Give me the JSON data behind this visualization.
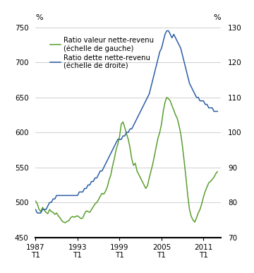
{
  "ylabel_left": "%",
  "ylabel_right": "%",
  "ylim_left": [
    450,
    750
  ],
  "ylim_right": [
    70,
    130
  ],
  "yticks_left": [
    450,
    500,
    550,
    600,
    650,
    700,
    750
  ],
  "yticks_right": [
    70,
    80,
    90,
    100,
    110,
    120,
    130
  ],
  "xtick_years": [
    1987,
    1993,
    1999,
    2005,
    2011
  ],
  "xlim": [
    1987.0,
    2013.5
  ],
  "line1_color": "#5a9e2f",
  "line2_color": "#2b5da6",
  "line1_label": "Ratio valeur nette-revenu\n(échelle de gauche)",
  "line2_label": "Ratio dette nette-revenu\n(échelle de droite)",
  "legend_fontsize": 7.2,
  "tick_fontsize": 7.5,
  "pct_fontsize": 8.0,
  "background_color": "#ffffff",
  "grid_color": "#c8c8c8",
  "line_width": 1.1,
  "green_data": [
    [
      1987.0,
      502
    ],
    [
      1987.25,
      498
    ],
    [
      1987.5,
      490
    ],
    [
      1987.75,
      487
    ],
    [
      1988.0,
      493
    ],
    [
      1988.25,
      489
    ],
    [
      1988.5,
      486
    ],
    [
      1988.75,
      484
    ],
    [
      1989.0,
      490
    ],
    [
      1989.25,
      487
    ],
    [
      1989.5,
      486
    ],
    [
      1989.75,
      483
    ],
    [
      1990.0,
      485
    ],
    [
      1990.25,
      481
    ],
    [
      1990.5,
      478
    ],
    [
      1990.75,
      474
    ],
    [
      1991.0,
      472
    ],
    [
      1991.25,
      471
    ],
    [
      1991.5,
      473
    ],
    [
      1991.75,
      474
    ],
    [
      1992.0,
      478
    ],
    [
      1992.25,
      480
    ],
    [
      1992.5,
      479
    ],
    [
      1992.75,
      480
    ],
    [
      1993.0,
      481
    ],
    [
      1993.25,
      479
    ],
    [
      1993.5,
      477
    ],
    [
      1993.75,
      478
    ],
    [
      1994.0,
      484
    ],
    [
      1994.25,
      488
    ],
    [
      1994.5,
      487
    ],
    [
      1994.75,
      486
    ],
    [
      1995.0,
      490
    ],
    [
      1995.25,
      494
    ],
    [
      1995.5,
      498
    ],
    [
      1995.75,
      500
    ],
    [
      1996.0,
      504
    ],
    [
      1996.25,
      509
    ],
    [
      1996.5,
      513
    ],
    [
      1996.75,
      512
    ],
    [
      1997.0,
      516
    ],
    [
      1997.25,
      522
    ],
    [
      1997.5,
      532
    ],
    [
      1997.75,
      539
    ],
    [
      1998.0,
      552
    ],
    [
      1998.25,
      562
    ],
    [
      1998.5,
      575
    ],
    [
      1998.75,
      583
    ],
    [
      1999.0,
      594
    ],
    [
      1999.25,
      612
    ],
    [
      1999.5,
      615
    ],
    [
      1999.75,
      607
    ],
    [
      2000.0,
      598
    ],
    [
      2000.25,
      590
    ],
    [
      2000.5,
      578
    ],
    [
      2000.75,
      562
    ],
    [
      2001.0,
      553
    ],
    [
      2001.25,
      556
    ],
    [
      2001.5,
      545
    ],
    [
      2001.75,
      540
    ],
    [
      2002.0,
      535
    ],
    [
      2002.25,
      530
    ],
    [
      2002.5,
      525
    ],
    [
      2002.75,
      520
    ],
    [
      2003.0,
      524
    ],
    [
      2003.25,
      535
    ],
    [
      2003.5,
      545
    ],
    [
      2003.75,
      555
    ],
    [
      2004.0,
      567
    ],
    [
      2004.25,
      580
    ],
    [
      2004.5,
      592
    ],
    [
      2004.75,
      600
    ],
    [
      2005.0,
      612
    ],
    [
      2005.25,
      630
    ],
    [
      2005.5,
      643
    ],
    [
      2005.75,
      650
    ],
    [
      2006.0,
      648
    ],
    [
      2006.25,
      645
    ],
    [
      2006.5,
      638
    ],
    [
      2006.75,
      632
    ],
    [
      2007.0,
      625
    ],
    [
      2007.25,
      620
    ],
    [
      2007.5,
      610
    ],
    [
      2007.75,
      598
    ],
    [
      2008.0,
      580
    ],
    [
      2008.25,
      558
    ],
    [
      2008.5,
      535
    ],
    [
      2008.75,
      510
    ],
    [
      2009.0,
      490
    ],
    [
      2009.25,
      480
    ],
    [
      2009.5,
      475
    ],
    [
      2009.75,
      472
    ],
    [
      2010.0,
      478
    ],
    [
      2010.25,
      485
    ],
    [
      2010.5,
      490
    ],
    [
      2010.75,
      498
    ],
    [
      2011.0,
      508
    ],
    [
      2011.25,
      516
    ],
    [
      2011.5,
      522
    ],
    [
      2011.75,
      528
    ],
    [
      2012.0,
      530
    ],
    [
      2012.25,
      533
    ],
    [
      2012.5,
      536
    ],
    [
      2012.75,
      541
    ],
    [
      2013.0,
      544
    ]
  ],
  "blue_data": [
    [
      1987.0,
      78
    ],
    [
      1987.25,
      77
    ],
    [
      1987.5,
      77
    ],
    [
      1987.75,
      77
    ],
    [
      1988.0,
      78
    ],
    [
      1988.25,
      78
    ],
    [
      1988.5,
      78
    ],
    [
      1988.75,
      79
    ],
    [
      1989.0,
      80
    ],
    [
      1989.25,
      80
    ],
    [
      1989.5,
      81
    ],
    [
      1989.75,
      81
    ],
    [
      1990.0,
      82
    ],
    [
      1990.25,
      82
    ],
    [
      1990.5,
      82
    ],
    [
      1990.75,
      82
    ],
    [
      1991.0,
      82
    ],
    [
      1991.25,
      82
    ],
    [
      1991.5,
      82
    ],
    [
      1991.75,
      82
    ],
    [
      1992.0,
      82
    ],
    [
      1992.25,
      82
    ],
    [
      1992.5,
      82
    ],
    [
      1992.75,
      82
    ],
    [
      1993.0,
      82
    ],
    [
      1993.25,
      83
    ],
    [
      1993.5,
      83
    ],
    [
      1993.75,
      83
    ],
    [
      1994.0,
      84
    ],
    [
      1994.25,
      84
    ],
    [
      1994.5,
      85
    ],
    [
      1994.75,
      85
    ],
    [
      1995.0,
      86
    ],
    [
      1995.25,
      86
    ],
    [
      1995.5,
      87
    ],
    [
      1995.75,
      87
    ],
    [
      1996.0,
      88
    ],
    [
      1996.25,
      89
    ],
    [
      1996.5,
      89
    ],
    [
      1996.75,
      90
    ],
    [
      1997.0,
      91
    ],
    [
      1997.25,
      92
    ],
    [
      1997.5,
      93
    ],
    [
      1997.75,
      94
    ],
    [
      1998.0,
      95
    ],
    [
      1998.25,
      96
    ],
    [
      1998.5,
      97
    ],
    [
      1998.75,
      98
    ],
    [
      1999.0,
      98
    ],
    [
      1999.25,
      98
    ],
    [
      1999.5,
      99
    ],
    [
      1999.75,
      99
    ],
    [
      2000.0,
      100
    ],
    [
      2000.25,
      100
    ],
    [
      2000.5,
      101
    ],
    [
      2000.75,
      101
    ],
    [
      2001.0,
      102
    ],
    [
      2001.25,
      103
    ],
    [
      2001.5,
      104
    ],
    [
      2001.75,
      105
    ],
    [
      2002.0,
      106
    ],
    [
      2002.25,
      107
    ],
    [
      2002.5,
      108
    ],
    [
      2002.75,
      109
    ],
    [
      2003.0,
      110
    ],
    [
      2003.25,
      111
    ],
    [
      2003.5,
      113
    ],
    [
      2003.75,
      115
    ],
    [
      2004.0,
      117
    ],
    [
      2004.25,
      119
    ],
    [
      2004.5,
      121
    ],
    [
      2004.75,
      123
    ],
    [
      2005.0,
      124
    ],
    [
      2005.25,
      126
    ],
    [
      2005.5,
      128
    ],
    [
      2005.75,
      129
    ],
    [
      2006.0,
      129
    ],
    [
      2006.25,
      128
    ],
    [
      2006.5,
      127
    ],
    [
      2006.75,
      128
    ],
    [
      2007.0,
      127
    ],
    [
      2007.25,
      126
    ],
    [
      2007.5,
      125
    ],
    [
      2007.75,
      124
    ],
    [
      2008.0,
      122
    ],
    [
      2008.25,
      120
    ],
    [
      2008.5,
      118
    ],
    [
      2008.75,
      116
    ],
    [
      2009.0,
      114
    ],
    [
      2009.25,
      113
    ],
    [
      2009.5,
      112
    ],
    [
      2009.75,
      111
    ],
    [
      2010.0,
      110
    ],
    [
      2010.25,
      110
    ],
    [
      2010.5,
      109
    ],
    [
      2010.75,
      109
    ],
    [
      2011.0,
      109
    ],
    [
      2011.25,
      108
    ],
    [
      2011.5,
      108
    ],
    [
      2011.75,
      107
    ],
    [
      2012.0,
      107
    ],
    [
      2012.25,
      107
    ],
    [
      2012.5,
      106
    ],
    [
      2012.75,
      106
    ],
    [
      2013.0,
      106
    ]
  ]
}
